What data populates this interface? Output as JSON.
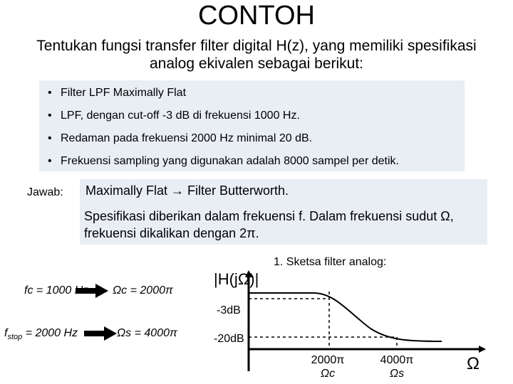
{
  "title": "CONTOH",
  "intro": "Tentukan fungsi transfer filter digital H(z), yang memiliki spesifikasi analog ekivalen sebagai berikut:",
  "spec": {
    "bullet": "•",
    "items": [
      "Filter LPF Maximally Flat",
      "LPF, dengan cut-off -3 dB di frekuensi 1000 Hz.",
      "Redaman  pada frekuensi 2000 Hz minimal 20 dB.",
      "Frekuensi sampling yang digunakan adalah 8000 sampel per detik."
    ]
  },
  "answer": {
    "label": "Jawab:",
    "line1_prefix": "Maximally Flat ",
    "arrow": "→",
    "line1_suffix": " Filter Butterworth.",
    "line2": "Spesifikasi diberikan dalam frekuensi f.  Dalam frekuensi sudut Ω, frekuensi dikalikan dengan 2π."
  },
  "formulas": {
    "fc": "fc = 1000 Hz",
    "omega_c": "Ωc = 2000π",
    "fstop_main": "f",
    "fstop_sub": "stop",
    "fstop_rest": " = 2000 Hz",
    "omega_s": "Ωs = 4000π"
  },
  "sketch": {
    "caption": "1. Sketsa filter analog:",
    "y_label": "|H(jΩ)|",
    "db3": "-3dB",
    "db20": "-20dB",
    "xtick_c_top": "2000π",
    "xtick_c_bottom": "Ωc",
    "xtick_s_top": "4000π",
    "xtick_s_bottom": "Ωs",
    "x_label": "Ω"
  }
}
